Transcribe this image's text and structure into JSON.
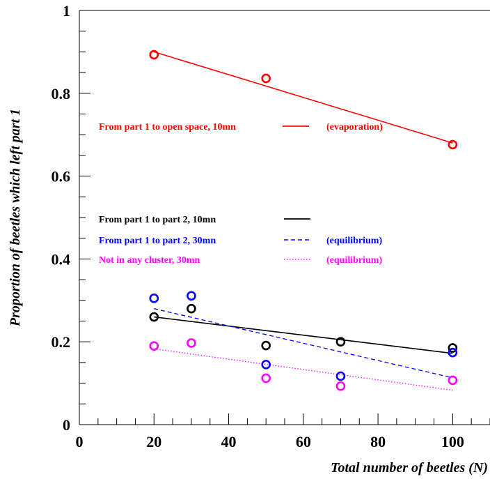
{
  "chart_data": {
    "type": "scatter",
    "title": "",
    "xlabel": "Total number of beetles (N)",
    "ylabel": "Proportion of beetles which left part 1",
    "xlim": [
      0,
      110
    ],
    "ylim": [
      0,
      1.0
    ],
    "x_ticks": [
      "0",
      "20",
      "40",
      "60",
      "80",
      "100"
    ],
    "y_ticks": [
      "0",
      "0.2",
      "0.4",
      "0.6",
      "0.8",
      "1"
    ],
    "grid": false,
    "series": [
      {
        "name": "From part 1 to open space, 10mn",
        "annotation": "(evaporation)",
        "color": "#ff0000",
        "line_style": "solid",
        "x": [
          20,
          50,
          100
        ],
        "y": [
          0.893,
          0.836,
          0.676
        ],
        "fit": [
          [
            20,
            0.9
          ],
          [
            100,
            0.68
          ]
        ]
      },
      {
        "name": "From part 1 to part 2, 10mn",
        "annotation": "",
        "color": "#000000",
        "line_style": "solid",
        "x": [
          20,
          30,
          50,
          70,
          100
        ],
        "y": [
          0.26,
          0.28,
          0.191,
          0.2,
          0.185
        ],
        "fit": [
          [
            20,
            0.26
          ],
          [
            100,
            0.172
          ]
        ]
      },
      {
        "name": "From part 1 to part 2, 30mn",
        "annotation": "(equilibrium)",
        "color": "#0000ff",
        "line_style": "dashed",
        "x": [
          20,
          30,
          50,
          70,
          100
        ],
        "y": [
          0.305,
          0.311,
          0.145,
          0.117,
          0.174
        ],
        "fit": [
          [
            20,
            0.28
          ],
          [
            100,
            0.113
          ]
        ]
      },
      {
        "name": "Not in any cluster, 30mn",
        "annotation": "(equilibrium)",
        "color": "#ff00ff",
        "line_style": "dotted",
        "x": [
          20,
          30,
          50,
          70,
          100
        ],
        "y": [
          0.19,
          0.197,
          0.112,
          0.093,
          0.107
        ],
        "fit": [
          [
            20,
            0.183
          ],
          [
            100,
            0.083
          ]
        ]
      }
    ]
  }
}
